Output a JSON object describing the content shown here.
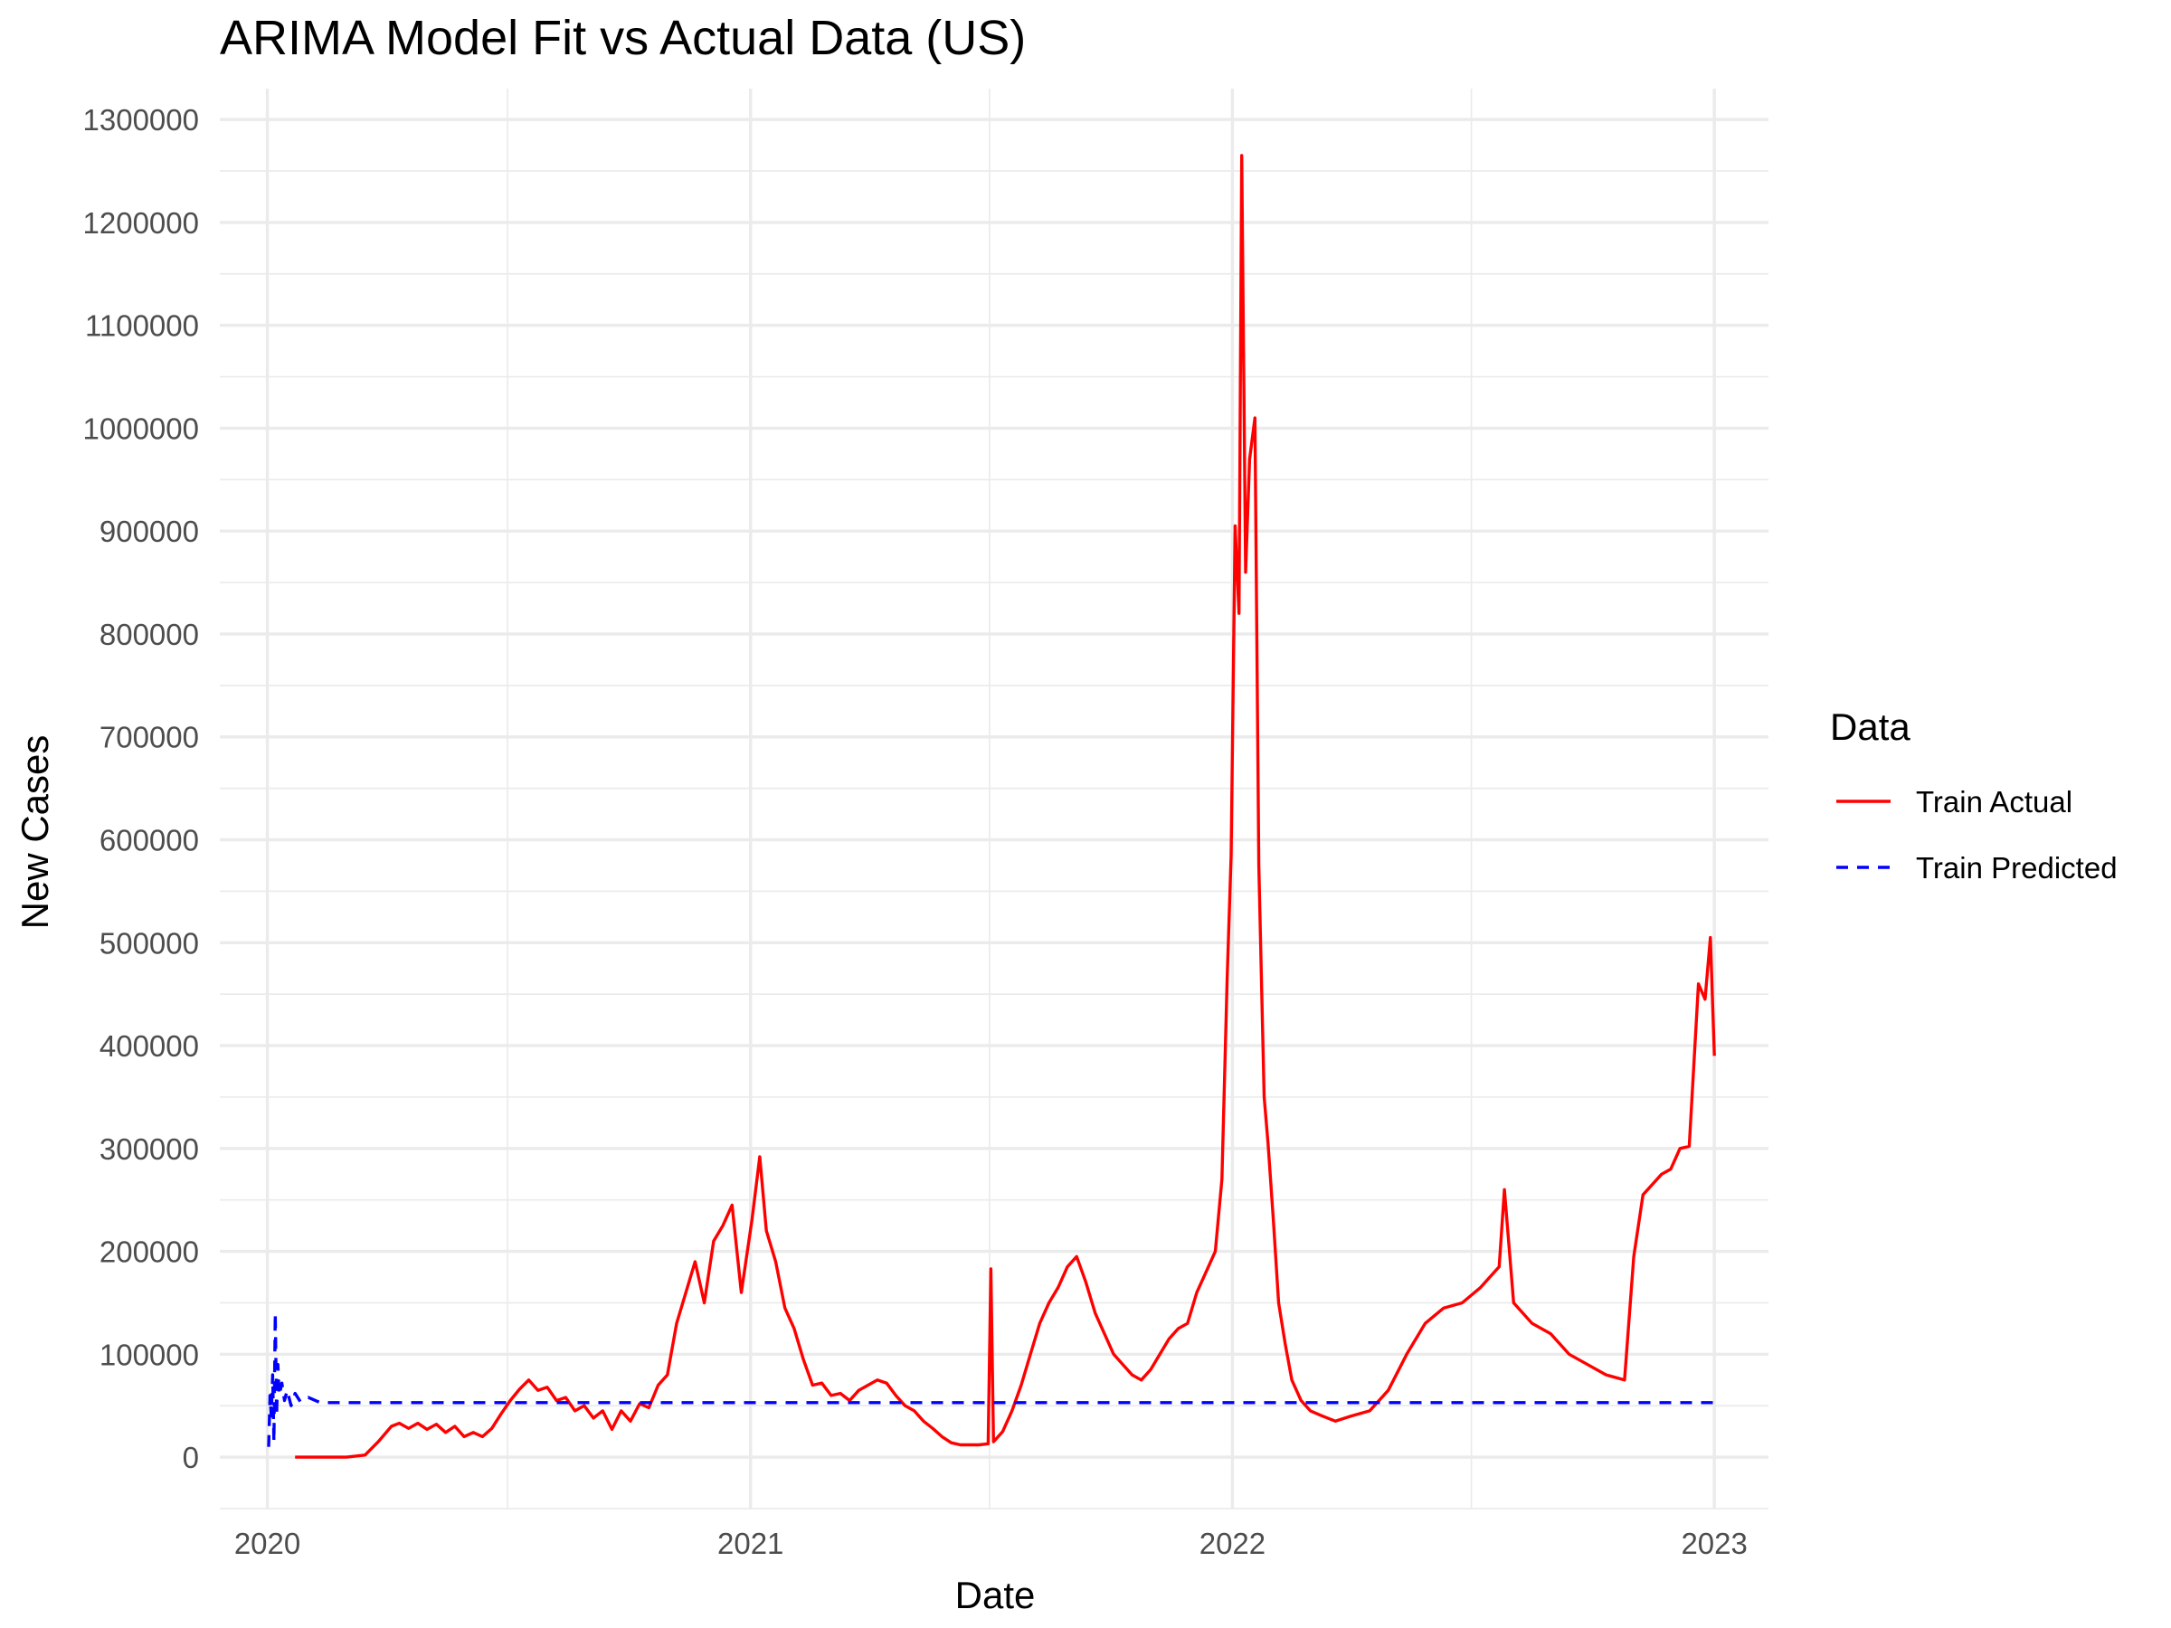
{
  "chart_data": {
    "type": "line",
    "title": "ARIMA Model Fit vs Actual Data (US)",
    "xlabel": "Date",
    "ylabel": "New Cases",
    "x_range": [
      "2019-11-26",
      "2023-02-11"
    ],
    "x_ticks": [
      {
        "date": "2020-01-01",
        "label": "2020"
      },
      {
        "date": "2021-01-01",
        "label": "2021"
      },
      {
        "date": "2022-01-01",
        "label": "2022"
      },
      {
        "date": "2023-01-01",
        "label": "2023"
      }
    ],
    "x_minor_dates": [
      "2020-07-01",
      "2021-07-01",
      "2022-07-01"
    ],
    "ylim": [
      -50000,
      1330000
    ],
    "y_ticks": [
      0,
      100000,
      200000,
      300000,
      400000,
      500000,
      600000,
      700000,
      800000,
      900000,
      1000000,
      1100000,
      1200000,
      1300000
    ],
    "grid": true,
    "legend": {
      "title": "Data",
      "position": "right"
    },
    "series": [
      {
        "name": "Train Actual",
        "color": "#ff0000",
        "line_style": "solid",
        "points": [
          [
            "2020-01-22",
            0
          ],
          [
            "2020-03-01",
            0
          ],
          [
            "2020-03-15",
            2000
          ],
          [
            "2020-03-25",
            15000
          ],
          [
            "2020-04-04",
            30000
          ],
          [
            "2020-04-10",
            33000
          ],
          [
            "2020-04-17",
            28000
          ],
          [
            "2020-04-24",
            33000
          ],
          [
            "2020-05-01",
            27000
          ],
          [
            "2020-05-08",
            32000
          ],
          [
            "2020-05-15",
            24000
          ],
          [
            "2020-05-22",
            30000
          ],
          [
            "2020-05-29",
            20000
          ],
          [
            "2020-06-05",
            24000
          ],
          [
            "2020-06-12",
            20000
          ],
          [
            "2020-06-19",
            28000
          ],
          [
            "2020-06-26",
            42000
          ],
          [
            "2020-07-03",
            55000
          ],
          [
            "2020-07-10",
            66000
          ],
          [
            "2020-07-17",
            75000
          ],
          [
            "2020-07-24",
            65000
          ],
          [
            "2020-07-31",
            68000
          ],
          [
            "2020-08-07",
            55000
          ],
          [
            "2020-08-14",
            58000
          ],
          [
            "2020-08-21",
            45000
          ],
          [
            "2020-08-28",
            50000
          ],
          [
            "2020-09-04",
            38000
          ],
          [
            "2020-09-11",
            45000
          ],
          [
            "2020-09-18",
            27000
          ],
          [
            "2020-09-25",
            45000
          ],
          [
            "2020-10-02",
            35000
          ],
          [
            "2020-10-09",
            52000
          ],
          [
            "2020-10-16",
            48000
          ],
          [
            "2020-10-23",
            70000
          ],
          [
            "2020-10-30",
            80000
          ],
          [
            "2020-11-06",
            130000
          ],
          [
            "2020-11-13",
            160000
          ],
          [
            "2020-11-20",
            190000
          ],
          [
            "2020-11-27",
            150000
          ],
          [
            "2020-12-04",
            210000
          ],
          [
            "2020-12-11",
            225000
          ],
          [
            "2020-12-18",
            245000
          ],
          [
            "2020-12-25",
            160000
          ],
          [
            "2021-01-02",
            230000
          ],
          [
            "2021-01-08",
            292000
          ],
          [
            "2021-01-13",
            220000
          ],
          [
            "2021-01-20",
            190000
          ],
          [
            "2021-01-27",
            145000
          ],
          [
            "2021-02-03",
            125000
          ],
          [
            "2021-02-10",
            95000
          ],
          [
            "2021-02-17",
            70000
          ],
          [
            "2021-02-24",
            72000
          ],
          [
            "2021-03-03",
            60000
          ],
          [
            "2021-03-10",
            62000
          ],
          [
            "2021-03-17",
            55000
          ],
          [
            "2021-03-24",
            65000
          ],
          [
            "2021-03-31",
            70000
          ],
          [
            "2021-04-07",
            75000
          ],
          [
            "2021-04-14",
            72000
          ],
          [
            "2021-04-21",
            60000
          ],
          [
            "2021-04-28",
            50000
          ],
          [
            "2021-05-05",
            45000
          ],
          [
            "2021-05-12",
            35000
          ],
          [
            "2021-05-19",
            28000
          ],
          [
            "2021-05-26",
            20000
          ],
          [
            "2021-06-02",
            14000
          ],
          [
            "2021-06-09",
            12000
          ],
          [
            "2021-06-16",
            12000
          ],
          [
            "2021-06-23",
            12000
          ],
          [
            "2021-06-30",
            13000
          ],
          [
            "2021-07-02",
            183000
          ],
          [
            "2021-07-04",
            15000
          ],
          [
            "2021-07-11",
            25000
          ],
          [
            "2021-07-18",
            45000
          ],
          [
            "2021-07-25",
            70000
          ],
          [
            "2021-08-01",
            100000
          ],
          [
            "2021-08-08",
            130000
          ],
          [
            "2021-08-15",
            150000
          ],
          [
            "2021-08-22",
            165000
          ],
          [
            "2021-08-29",
            185000
          ],
          [
            "2021-09-05",
            195000
          ],
          [
            "2021-09-12",
            170000
          ],
          [
            "2021-09-19",
            140000
          ],
          [
            "2021-09-26",
            120000
          ],
          [
            "2021-10-03",
            100000
          ],
          [
            "2021-10-10",
            90000
          ],
          [
            "2021-10-17",
            80000
          ],
          [
            "2021-10-24",
            75000
          ],
          [
            "2021-10-31",
            85000
          ],
          [
            "2021-11-07",
            100000
          ],
          [
            "2021-11-14",
            115000
          ],
          [
            "2021-11-21",
            125000
          ],
          [
            "2021-11-28",
            130000
          ],
          [
            "2021-12-05",
            160000
          ],
          [
            "2021-12-12",
            180000
          ],
          [
            "2021-12-19",
            200000
          ],
          [
            "2021-12-24",
            270000
          ],
          [
            "2021-12-28",
            465000
          ],
          [
            "2021-12-31",
            585000
          ],
          [
            "2022-01-03",
            905000
          ],
          [
            "2022-01-06",
            820000
          ],
          [
            "2022-01-08",
            1265000
          ],
          [
            "2022-01-11",
            860000
          ],
          [
            "2022-01-14",
            970000
          ],
          [
            "2022-01-18",
            1010000
          ],
          [
            "2022-01-21",
            575000
          ],
          [
            "2022-01-25",
            350000
          ],
          [
            "2022-01-28",
            305000
          ],
          [
            "2022-02-01",
            230000
          ],
          [
            "2022-02-05",
            150000
          ],
          [
            "2022-02-10",
            110000
          ],
          [
            "2022-02-15",
            75000
          ],
          [
            "2022-02-22",
            55000
          ],
          [
            "2022-03-01",
            45000
          ],
          [
            "2022-03-10",
            40000
          ],
          [
            "2022-03-20",
            35000
          ],
          [
            "2022-04-01",
            40000
          ],
          [
            "2022-04-15",
            45000
          ],
          [
            "2022-04-29",
            65000
          ],
          [
            "2022-05-13",
            100000
          ],
          [
            "2022-05-27",
            130000
          ],
          [
            "2022-06-10",
            145000
          ],
          [
            "2022-06-24",
            150000
          ],
          [
            "2022-07-08",
            165000
          ],
          [
            "2022-07-15",
            175000
          ],
          [
            "2022-07-22",
            185000
          ],
          [
            "2022-07-26",
            260000
          ],
          [
            "2022-08-02",
            150000
          ],
          [
            "2022-08-16",
            130000
          ],
          [
            "2022-08-30",
            120000
          ],
          [
            "2022-09-13",
            100000
          ],
          [
            "2022-09-27",
            90000
          ],
          [
            "2022-10-11",
            80000
          ],
          [
            "2022-10-25",
            75000
          ],
          [
            "2022-11-01",
            195000
          ],
          [
            "2022-11-08",
            255000
          ],
          [
            "2022-11-15",
            265000
          ],
          [
            "2022-11-22",
            275000
          ],
          [
            "2022-11-29",
            280000
          ],
          [
            "2022-12-06",
            300000
          ],
          [
            "2022-12-13",
            302000
          ],
          [
            "2022-12-20",
            460000
          ],
          [
            "2022-12-25",
            445000
          ],
          [
            "2022-12-29",
            505000
          ],
          [
            "2023-01-01",
            390000
          ]
        ]
      },
      {
        "name": "Train Predicted",
        "color": "#0000ff",
        "line_style": "dashed",
        "points": [
          [
            "2020-01-02",
            10000
          ],
          [
            "2020-01-03",
            60000
          ],
          [
            "2020-01-04",
            40000
          ],
          [
            "2020-01-05",
            80000
          ],
          [
            "2020-01-06",
            15000
          ],
          [
            "2020-01-07",
            140000
          ],
          [
            "2020-01-08",
            40000
          ],
          [
            "2020-01-09",
            90000
          ],
          [
            "2020-01-10",
            60000
          ],
          [
            "2020-01-12",
            72000
          ],
          [
            "2020-01-14",
            55000
          ],
          [
            "2020-01-16",
            65000
          ],
          [
            "2020-01-19",
            50000
          ],
          [
            "2020-01-22",
            62000
          ],
          [
            "2020-01-26",
            54000
          ],
          [
            "2020-02-01",
            58000
          ],
          [
            "2020-02-10",
            53000
          ],
          [
            "2023-01-01",
            53000
          ]
        ]
      }
    ]
  }
}
